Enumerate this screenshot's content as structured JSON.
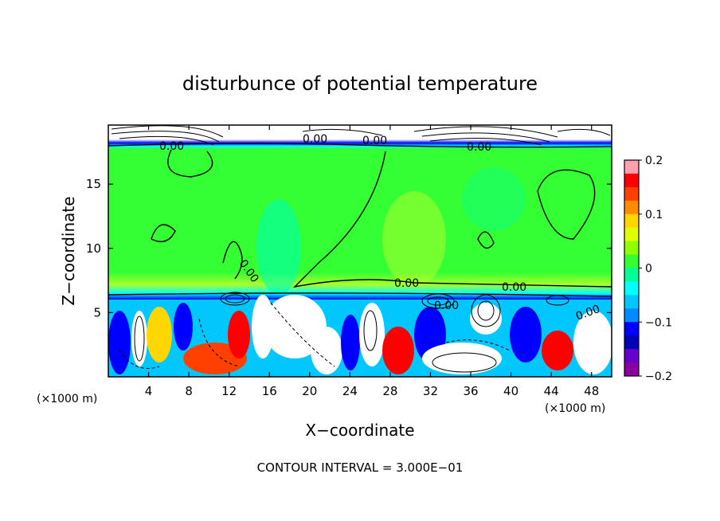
{
  "chart_data": {
    "type": "heatmap",
    "title": "disturbunce of potential temperature",
    "xlabel": "X−coordinate",
    "ylabel": "Z−coordinate",
    "x_unit": "(×1000 m)",
    "y_unit": "(×1000 m)",
    "xlim": [
      0,
      50
    ],
    "ylim": [
      0,
      19.6
    ],
    "x_ticks": [
      4,
      8,
      12,
      16,
      20,
      24,
      28,
      32,
      36,
      40,
      44,
      48
    ],
    "y_ticks": [
      5,
      10,
      15
    ],
    "colorbar": {
      "range": [
        -0.2,
        0.2
      ],
      "ticks": [
        0.2,
        0.1,
        0,
        -0.1,
        -0.2
      ],
      "tick_labels": [
        "0.2",
        "0.1",
        "0",
        "−0.1",
        "−0.2"
      ],
      "colors": [
        "#ff9fb0",
        "#ff0000",
        "#ff4000",
        "#ff8c00",
        "#ffd700",
        "#ddff00",
        "#90ff00",
        "#33ff33",
        "#00ff99",
        "#00ffff",
        "#00c8ff",
        "#008cff",
        "#0000ff",
        "#0000b4",
        "#6600cc",
        "#8b00a0"
      ]
    },
    "contour_labels": [
      "0.00",
      "0.00",
      "0.00",
      "0.00",
      "0.00",
      "0.00",
      "0.00",
      "0.00",
      "0.00"
    ],
    "footnote": "CONTOUR INTERVAL = 3.000E−01"
  }
}
